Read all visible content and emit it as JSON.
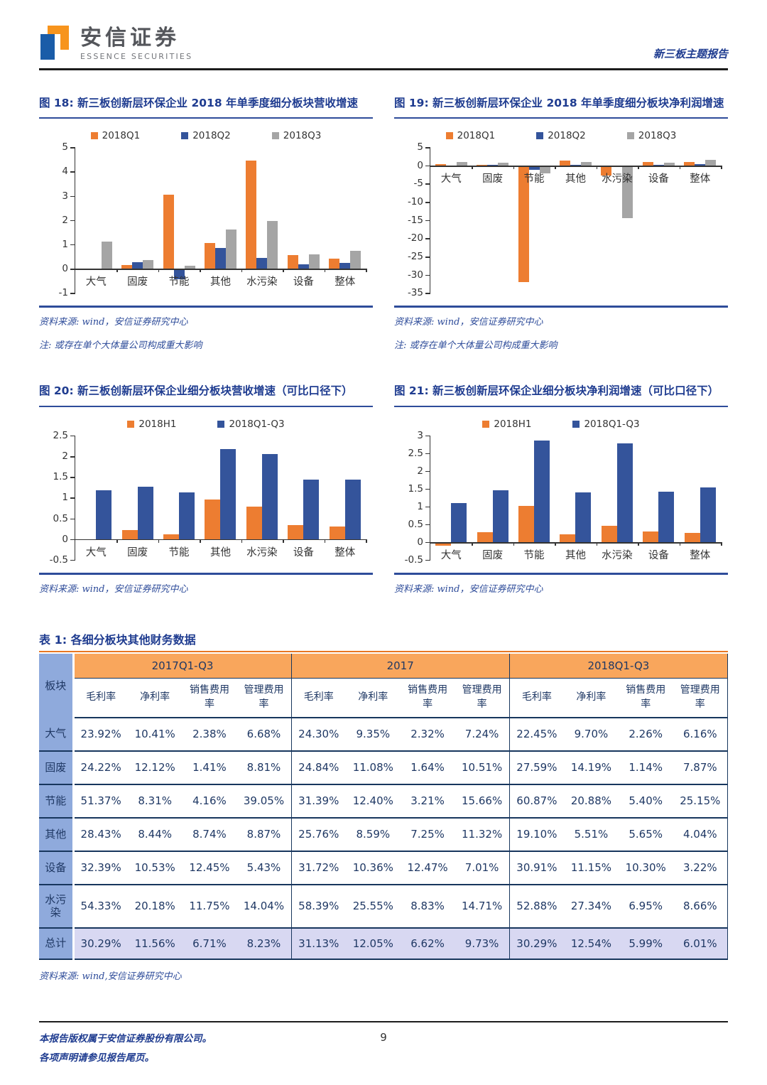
{
  "header": {
    "brand_cn": "安信证券",
    "brand_en": "ESSENCE SECURITIES",
    "doc_type": "新三板主题报告"
  },
  "chart_data": [
    {
      "type": "bar",
      "title": "图 18: 新三板创新层环保企业 2018 年单季度细分板块营收增速",
      "categories": [
        "大气",
        "固废",
        "节能",
        "其他",
        "水污染",
        "设备",
        "整体"
      ],
      "series": [
        {
          "name": "2018Q1",
          "color": "#ED7D31",
          "values": [
            -0.05,
            0.15,
            3.05,
            1.05,
            4.45,
            0.55,
            0.4
          ]
        },
        {
          "name": "2018Q2",
          "color": "#34549B",
          "values": [
            -0.05,
            0.25,
            -0.45,
            0.85,
            0.43,
            0.18,
            0.22
          ]
        },
        {
          "name": "2018Q3",
          "color": "#A5A5A5",
          "values": [
            1.12,
            0.35,
            0.13,
            1.6,
            1.97,
            0.6,
            0.72
          ]
        }
      ],
      "ylim": [
        -1,
        5
      ],
      "yticks": [
        5,
        4,
        3,
        2,
        1,
        0,
        -1
      ],
      "legend_position": "top",
      "grid": false,
      "source": "资料来源: wind，安信证券研究中心",
      "note": "注: 或存在单个大体量公司构成重大影响"
    },
    {
      "type": "bar",
      "title": "图 19: 新三板创新层环保企业 2018 年单季度细分板块净利润增速",
      "categories": [
        "大气",
        "固废",
        "节能",
        "其他",
        "水污染",
        "设备",
        "整体"
      ],
      "series": [
        {
          "name": "2018Q1",
          "color": "#ED7D31",
          "values": [
            0.3,
            0.1,
            -32.0,
            1.3,
            -2.8,
            1.0,
            1.0
          ]
        },
        {
          "name": "2018Q2",
          "color": "#34549B",
          "values": [
            -0.4,
            0.1,
            -1.3,
            0.1,
            -0.5,
            0.25,
            0.3
          ]
        },
        {
          "name": "2018Q3",
          "color": "#A5A5A5",
          "values": [
            0.9,
            0.7,
            -2.2,
            0.9,
            -14.5,
            0.7,
            1.6
          ]
        }
      ],
      "ylim": [
        -35,
        5
      ],
      "yticks": [
        5,
        0,
        -5,
        -10,
        -15,
        -20,
        -25,
        -30,
        -35
      ],
      "legend_position": "top",
      "grid": false,
      "source": "资料来源: wind，安信证券研究中心",
      "note": "注: 或存在单个大体量公司构成重大影响"
    },
    {
      "type": "bar",
      "title": "图 20: 新三板创新层环保企业细分板块营收增速（可比口径下）",
      "categories": [
        "大气",
        "固废",
        "节能",
        "其他",
        "水污染",
        "设备",
        "整体"
      ],
      "series": [
        {
          "name": "2018H1",
          "color": "#ED7D31",
          "values": [
            -0.03,
            0.22,
            0.11,
            0.95,
            0.78,
            0.34,
            0.31
          ]
        },
        {
          "name": "2018Q1-Q3",
          "color": "#34549B",
          "values": [
            1.18,
            1.26,
            1.13,
            2.18,
            2.06,
            1.43,
            1.43
          ]
        }
      ],
      "ylim": [
        -0.5,
        2.5
      ],
      "yticks": [
        2.5,
        2,
        1.5,
        1,
        0.5,
        0,
        -0.5
      ],
      "legend_position": "top",
      "grid": false,
      "source": "资料来源: wind，安信证券研究中心"
    },
    {
      "type": "bar",
      "title": "图 21: 新三板创新层环保企业细分板块净利润增速（可比口径下）",
      "categories": [
        "大气",
        "固废",
        "节能",
        "其他",
        "水污染",
        "设备",
        "整体"
      ],
      "series": [
        {
          "name": "2018H1",
          "color": "#ED7D31",
          "values": [
            -0.1,
            0.28,
            1.02,
            0.22,
            0.45,
            0.3,
            0.25
          ]
        },
        {
          "name": "2018Q1-Q3",
          "color": "#34549B",
          "values": [
            1.1,
            1.45,
            2.85,
            1.4,
            2.77,
            1.42,
            1.53
          ]
        }
      ],
      "ylim": [
        -0.5,
        3
      ],
      "yticks": [
        3,
        2.5,
        2,
        1.5,
        1,
        0.5,
        0,
        -0.5
      ],
      "legend_position": "top",
      "grid": false,
      "source": "资料来源: wind，安信证券研究中心"
    }
  ],
  "table": {
    "title": "表 1: 各细分板块其他财务数据",
    "corner": "板块",
    "groups": [
      "2017Q1-Q3",
      "2017",
      "2018Q1-Q3"
    ],
    "sub_headers": [
      "毛利率",
      "净利率",
      "销售费用率",
      "管理费用率",
      "毛利率",
      "净利率",
      "销售费用率",
      "管理费用率",
      "毛利率",
      "净利率",
      "销售费用率",
      "管理费用率"
    ],
    "rows": [
      {
        "label": "大气",
        "values": [
          "23.92%",
          "10.41%",
          "2.38%",
          "6.68%",
          "24.30%",
          "9.35%",
          "2.32%",
          "7.24%",
          "22.45%",
          "9.70%",
          "2.26%",
          "6.16%"
        ]
      },
      {
        "label": "固废",
        "values": [
          "24.22%",
          "12.12%",
          "1.41%",
          "8.81%",
          "24.84%",
          "11.08%",
          "1.64%",
          "10.51%",
          "27.59%",
          "14.19%",
          "1.14%",
          "7.87%"
        ]
      },
      {
        "label": "节能",
        "values": [
          "51.37%",
          "8.31%",
          "4.16%",
          "39.05%",
          "31.39%",
          "12.40%",
          "3.21%",
          "15.66%",
          "60.87%",
          "20.88%",
          "5.40%",
          "25.15%"
        ]
      },
      {
        "label": "其他",
        "values": [
          "28.43%",
          "8.44%",
          "8.74%",
          "8.87%",
          "25.76%",
          "8.59%",
          "7.25%",
          "11.32%",
          "19.10%",
          "5.51%",
          "5.65%",
          "4.04%"
        ]
      },
      {
        "label": "设备",
        "values": [
          "32.39%",
          "10.53%",
          "12.45%",
          "5.43%",
          "31.72%",
          "10.36%",
          "12.47%",
          "7.01%",
          "30.91%",
          "11.15%",
          "10.30%",
          "3.22%"
        ]
      },
      {
        "label": "水污染",
        "tall": true,
        "values": [
          "54.33%",
          "20.18%",
          "11.75%",
          "14.04%",
          "58.39%",
          "25.55%",
          "8.83%",
          "14.71%",
          "52.88%",
          "27.34%",
          "6.95%",
          "8.66%"
        ]
      },
      {
        "label": "总计",
        "total": true,
        "values": [
          "30.29%",
          "11.56%",
          "6.71%",
          "8.23%",
          "31.13%",
          "12.05%",
          "6.62%",
          "9.73%",
          "30.29%",
          "12.54%",
          "5.99%",
          "6.01%"
        ]
      }
    ],
    "source": "资料来源: wind,安信证券研究中心",
    "colors": {
      "group_header_bg": "#F9A65C",
      "label_col_bg": "#8FAADC",
      "total_row_bg": "#D8D8F2",
      "grid_line": "#17365D",
      "title_underline": "#E87722"
    }
  },
  "footer": {
    "line1": "本报告版权属于安信证券股份有限公司。",
    "line2": "各项声明请参见报告尾页。",
    "page_number": "9"
  }
}
